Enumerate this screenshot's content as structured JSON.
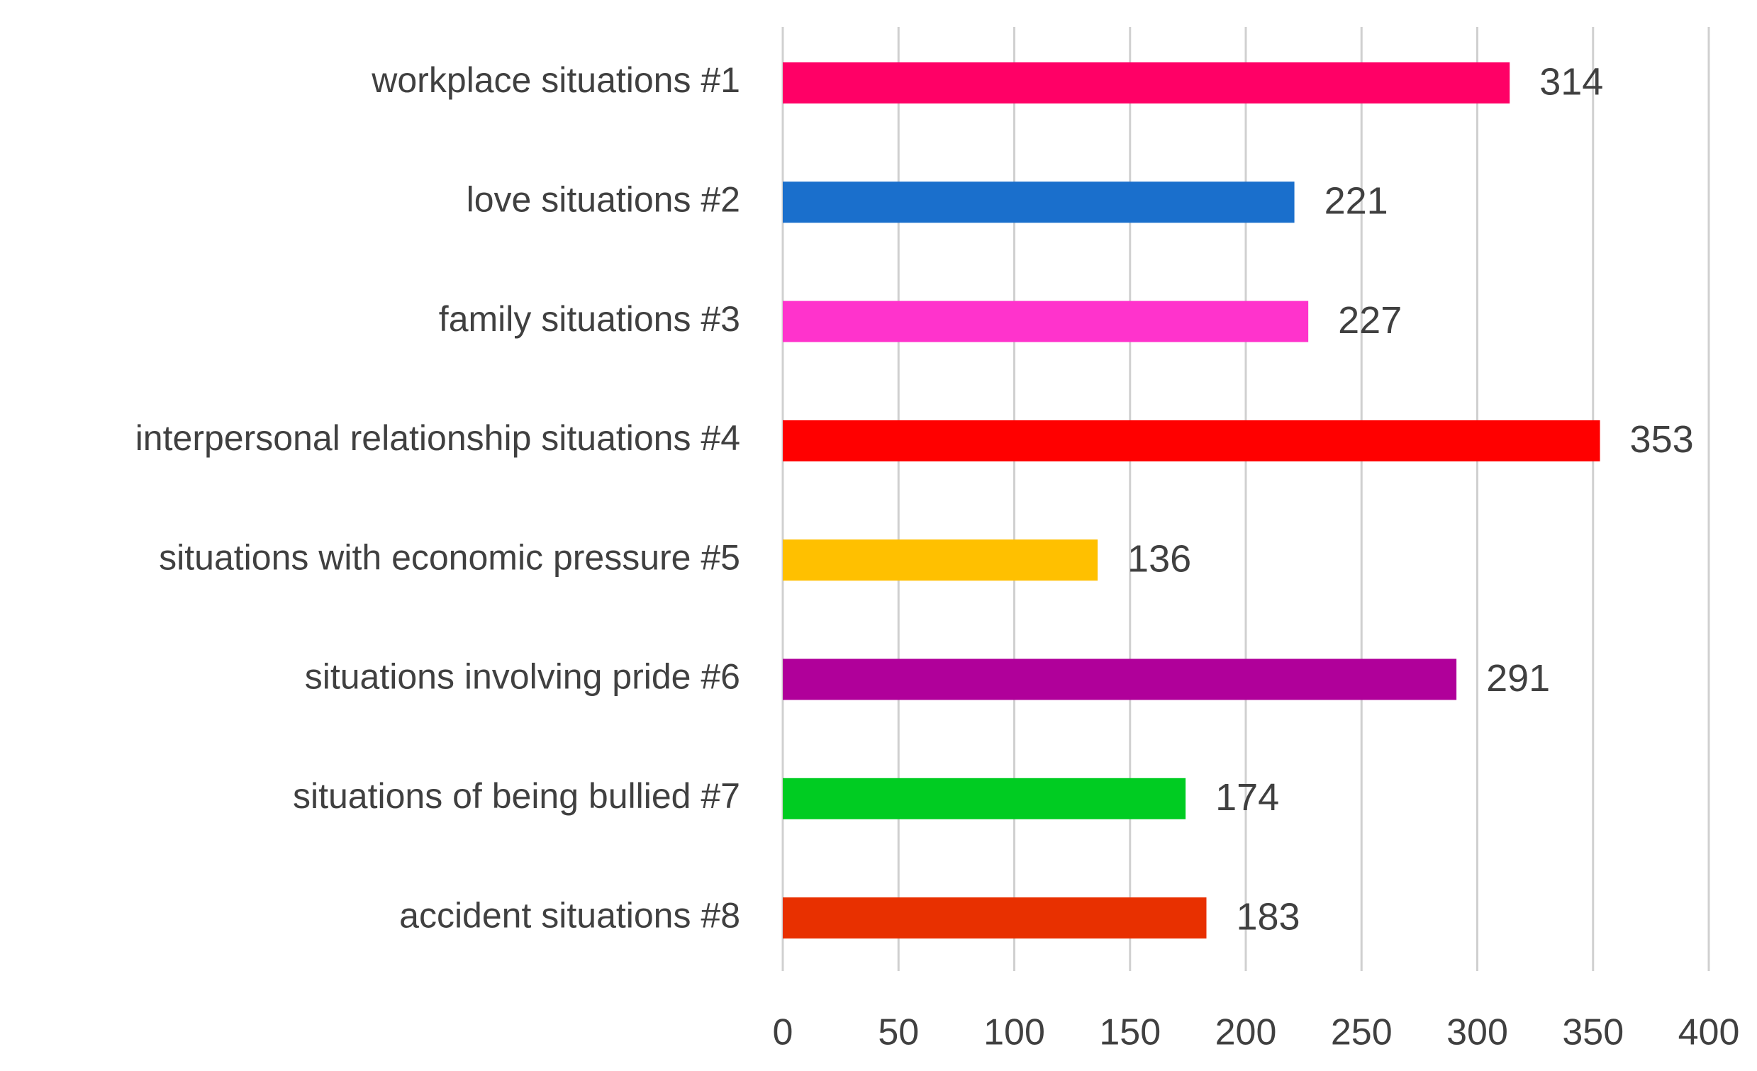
{
  "chart_data": {
    "type": "bar",
    "orientation": "horizontal",
    "title": "",
    "xlabel": "",
    "ylabel": "",
    "xlim": [
      0,
      400
    ],
    "x_ticks": [
      0,
      50,
      100,
      150,
      200,
      250,
      300,
      350,
      400
    ],
    "grid": "vertical",
    "legend": "none",
    "categories": [
      "workplace situations #1",
      "love situations #2",
      "family situations #3",
      "interpersonal relationship situations #4",
      "situations with economic pressure #5",
      "situations involving pride #6",
      "situations of being bullied #7",
      "accident situations #8"
    ],
    "values": [
      314,
      221,
      227,
      353,
      136,
      291,
      174,
      183
    ],
    "colors": [
      "#ff0066",
      "#1a6fcc",
      "#ff33cc",
      "#ff0000",
      "#ffc000",
      "#b0009a",
      "#00cc22",
      "#e83000"
    ],
    "gridline_color": "#d0d0d0",
    "text_color": "#404040"
  }
}
